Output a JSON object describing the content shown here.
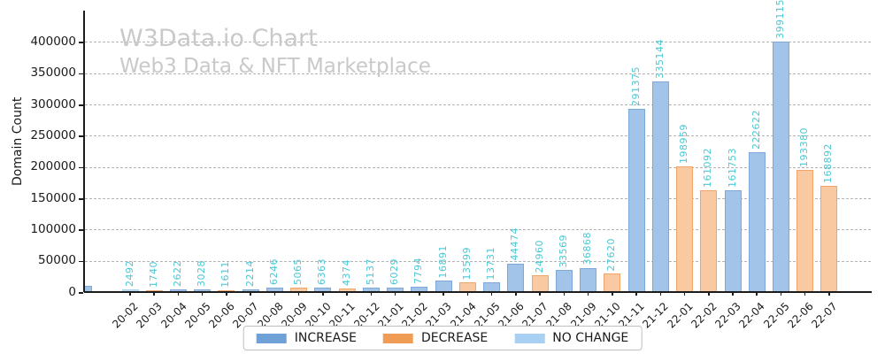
{
  "title": "W3Data.io Chart",
  "subtitle": "Web3 Data & NFT Marketplace",
  "ylabel": "Domain Count",
  "colors": {
    "increase_fill": "#a3c4e9",
    "increase_edge": "#7fa8da",
    "increase_legend": "#6fa1d7",
    "decrease_fill": "#f9c9a2",
    "decrease_edge": "#f2a569",
    "decrease_legend": "#f09c55",
    "no_change_fill": "#bcdcf6",
    "no_change_edge": "#a8d2f4",
    "no_change_legend": "#a8d0f3",
    "value_label": "#4cc8d4",
    "title_gray": "#c9c9c9",
    "gridline": "#b3b3b3",
    "axis": "#1c1c1c"
  },
  "legend": [
    {
      "label": "INCREASE",
      "key": "increase"
    },
    {
      "label": "DECREASE",
      "key": "decrease"
    },
    {
      "label": "NO CHANGE",
      "key": "no_change"
    }
  ],
  "chart_data": {
    "type": "bar",
    "title": "W3Data.io Chart",
    "subtitle": "Web3 Data & NFT Marketplace",
    "xlabel": "",
    "ylabel": "Domain Count",
    "ylim": [
      0,
      450000
    ],
    "yticks": [
      0,
      50000,
      100000,
      150000,
      200000,
      250000,
      300000,
      350000,
      400000
    ],
    "grid": "horizontal dashed",
    "legend_position": "bottom center",
    "legend_entries": [
      "INCREASE",
      "DECREASE",
      "NO CHANGE"
    ],
    "bar_value_labels": "rotated 90deg above each bar, turquoise",
    "points": [
      {
        "x": "20-02",
        "y": 2492,
        "series": "no_change"
      },
      {
        "x": "20-03",
        "y": 1740,
        "series": "decrease"
      },
      {
        "x": "20-04",
        "y": 2622,
        "series": "increase"
      },
      {
        "x": "20-05",
        "y": 3028,
        "series": "increase"
      },
      {
        "x": "20-06",
        "y": 1611,
        "series": "decrease"
      },
      {
        "x": "20-07",
        "y": 2214,
        "series": "increase"
      },
      {
        "x": "20-08",
        "y": 6246,
        "series": "increase"
      },
      {
        "x": "20-09",
        "y": 5065,
        "series": "decrease"
      },
      {
        "x": "20-10",
        "y": 6363,
        "series": "increase"
      },
      {
        "x": "20-11",
        "y": 4374,
        "series": "decrease"
      },
      {
        "x": "20-12",
        "y": 5137,
        "series": "increase"
      },
      {
        "x": "21-01",
        "y": 6029,
        "series": "increase"
      },
      {
        "x": "21-02",
        "y": 7794,
        "series": "increase"
      },
      {
        "x": "21-03",
        "y": 16891,
        "series": "increase"
      },
      {
        "x": "21-04",
        "y": 13599,
        "series": "decrease"
      },
      {
        "x": "21-05",
        "y": 13731,
        "series": "increase"
      },
      {
        "x": "21-06",
        "y": 44474,
        "series": "increase"
      },
      {
        "x": "21-07",
        "y": 24960,
        "series": "decrease"
      },
      {
        "x": "21-08",
        "y": 33569,
        "series": "increase"
      },
      {
        "x": "21-09",
        "y": 36868,
        "series": "increase"
      },
      {
        "x": "21-10",
        "y": 27620,
        "series": "decrease"
      },
      {
        "x": "21-11",
        "y": 291375,
        "series": "increase"
      },
      {
        "x": "21-12",
        "y": 335144,
        "series": "increase"
      },
      {
        "x": "22-01",
        "y": 198959,
        "series": "decrease"
      },
      {
        "x": "22-02",
        "y": 161092,
        "series": "decrease"
      },
      {
        "x": "22-03",
        "y": 161753,
        "series": "increase"
      },
      {
        "x": "22-04",
        "y": 222622,
        "series": "increase"
      },
      {
        "x": "22-05",
        "y": 399115,
        "series": "increase"
      },
      {
        "x": "22-06",
        "y": 193380,
        "series": "decrease"
      },
      {
        "x": "22-07",
        "y": 168892,
        "series": "decrease"
      }
    ],
    "partial_clipped_bar_at_left_edge": true
  }
}
